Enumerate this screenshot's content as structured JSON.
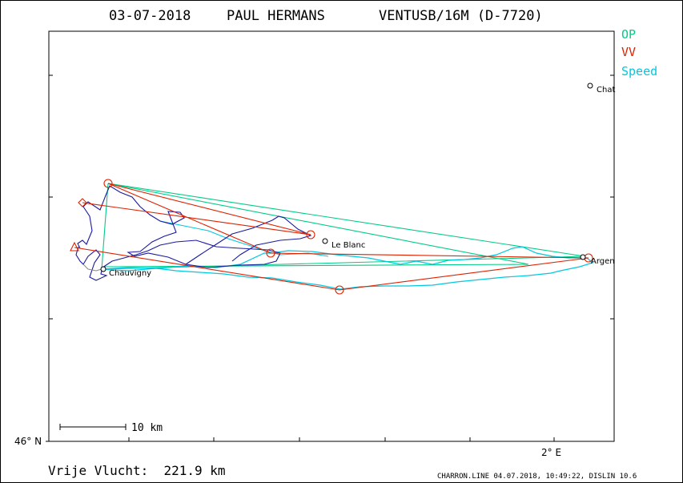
{
  "title": {
    "date": "03-07-2018",
    "pilot": "PAUL HERMANS",
    "glider": "VENTUSB/16M (D-7720)"
  },
  "legend": [
    {
      "label": "OP",
      "color": "#00cc88"
    },
    {
      "label": "VV",
      "color": "#dd2200"
    },
    {
      "label": "Speed",
      "color": "#00c8e0"
    }
  ],
  "axes": {
    "lat_label": "46° N",
    "lon_label": "2° E"
  },
  "places": [
    {
      "name": "Chat"
    },
    {
      "name": "Le Blanc"
    },
    {
      "name": "Argen"
    },
    {
      "name": "Chauvigny"
    }
  ],
  "scale_bar": {
    "label": "10 km"
  },
  "footer": {
    "distance_text": "Vrije Vlucht:  221.9 km",
    "credits": "CHARRON.LINE 04.07.2018, 10:49:22, DISLIN 10.6"
  },
  "colors": {
    "op_line": "#00cc88",
    "vv_line": "#dd2200",
    "speed_track": "#00c8e0",
    "climb_track": "#1a1aa0",
    "grey_track": "#888888"
  }
}
